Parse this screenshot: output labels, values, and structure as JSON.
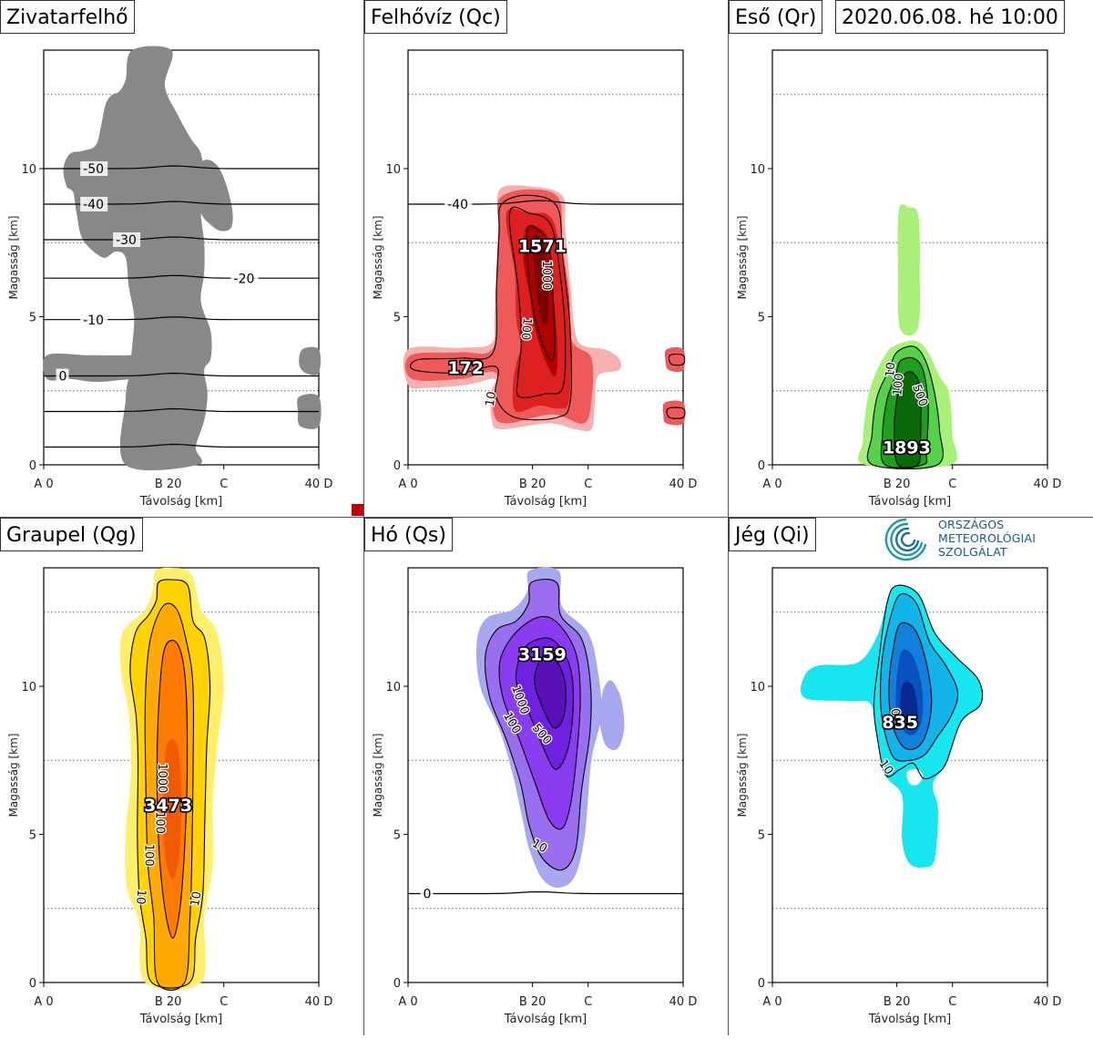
{
  "date_label": "2020.06.08. hé 10:00",
  "logo": {
    "lines": [
      "ORSZÁGOS",
      "METEOROLÓGIAI",
      "SZOLGÁLAT"
    ]
  },
  "axes": {
    "xlabel": "Távolság [km]",
    "ylabel": "Magasság [km]",
    "xlim": [
      0,
      42
    ],
    "ylim": [
      0,
      14
    ],
    "xticks": [
      {
        "v": 0,
        "label": "A 0"
      },
      {
        "v": 19,
        "label": "B 20"
      },
      {
        "v": 27.5,
        "label": "C"
      },
      {
        "v": 42,
        "label": "40 D"
      }
    ],
    "yticks": [
      {
        "v": 0,
        "label": "0"
      },
      {
        "v": 5,
        "label": "5"
      },
      {
        "v": 10,
        "label": "10"
      }
    ],
    "dotted_y": [
      2.5,
      7.5,
      12.5
    ]
  },
  "chart_data": [
    {
      "id": "zivatar",
      "type": "heatmap",
      "title": "Zivatarfelhő",
      "colors": [
        "#888888"
      ],
      "cloud": [
        [
          12.8,
          0
        ],
        [
          12.8,
          2.2
        ],
        [
          13,
          2.3
        ],
        [
          12.8,
          2.6
        ],
        [
          12.6,
          3.2
        ],
        [
          9,
          3.4
        ],
        [
          0,
          3.5
        ],
        [
          0,
          2.9
        ],
        [
          8,
          2.7
        ],
        [
          12.8,
          2.5
        ],
        [
          12.8,
          1.8
        ],
        [
          13,
          1.2
        ],
        [
          13.2,
          0.5
        ]
      ],
      "isotherms": [
        {
          "label": "-50",
          "y": 10.0,
          "lx": 6
        },
        {
          "label": "-40",
          "y": 8.8,
          "lx": 6
        },
        {
          "label": "-30",
          "y": 7.6,
          "lx": 11
        },
        {
          "label": "-20",
          "y": 6.3,
          "lx": 29
        },
        {
          "label": "-10",
          "y": 4.9,
          "lx": 6
        },
        {
          "label": "0",
          "y": 3.0,
          "lx": 2.3
        },
        {
          "label": "",
          "y": 1.8,
          "lx": 0
        },
        {
          "label": "",
          "y": 0.6,
          "lx": 0
        }
      ]
    },
    {
      "id": "felhoviz",
      "type": "heatmap",
      "title": "Felhővíz (Qc)",
      "colors": [
        "#f7b0b0",
        "#ee5a5a",
        "#dd2020",
        "#b00000",
        "#7a0000"
      ],
      "contour_labels": [
        "1000",
        "100",
        "10"
      ],
      "max_labels": [
        {
          "text": "1571",
          "x": 20.5,
          "y": 7.4
        },
        {
          "text": "172",
          "x": 8.8,
          "y": 3.3
        }
      ],
      "isotherms": [
        {
          "label": "-40",
          "y": 8.8,
          "lx": 6
        }
      ]
    },
    {
      "id": "eso",
      "type": "heatmap",
      "title": "Eső (Qr)",
      "colors": [
        "#a8f07a",
        "#56d24a",
        "#1ea01e",
        "#0a6a0a"
      ],
      "contour_labels": [
        "10",
        "100",
        "500"
      ],
      "max_labels": [
        {
          "text": "1893",
          "x": 20.5,
          "y": 0.6
        }
      ],
      "isotherms": []
    },
    {
      "id": "graupel",
      "type": "heatmap",
      "title": "Graupel (Qg)",
      "colors": [
        "#ffef6a",
        "#ffd200",
        "#ffaa00",
        "#ff7a00",
        "#f05a00"
      ],
      "contour_labels": [
        "1000",
        "100",
        "100",
        "10",
        "10"
      ],
      "max_labels": [
        {
          "text": "3473",
          "x": 19,
          "y": 6
        }
      ],
      "isotherms": []
    },
    {
      "id": "ho",
      "type": "heatmap",
      "title": "Hó (Qs)",
      "colors": [
        "#a8a8f0",
        "#9a6ef0",
        "#8a3cf0",
        "#7020e0",
        "#5a10b8"
      ],
      "contour_labels": [
        "1000",
        "500",
        "100",
        "10"
      ],
      "max_labels": [
        {
          "text": "3159",
          "x": 20.5,
          "y": 11.1
        }
      ],
      "isotherms": [
        {
          "label": "0",
          "y": 3.0,
          "lx": 2.3
        }
      ]
    },
    {
      "id": "jeg",
      "type": "heatmap",
      "title": "Jég (Qi)",
      "colors": [
        "#16e6f0",
        "#12b4ea",
        "#1080dc",
        "#0a50c0",
        "#062a90"
      ],
      "contour_labels": [
        "0",
        "10"
      ],
      "max_labels": [
        {
          "text": "835",
          "x": 19.5,
          "y": 8.8
        }
      ],
      "isotherms": []
    }
  ]
}
